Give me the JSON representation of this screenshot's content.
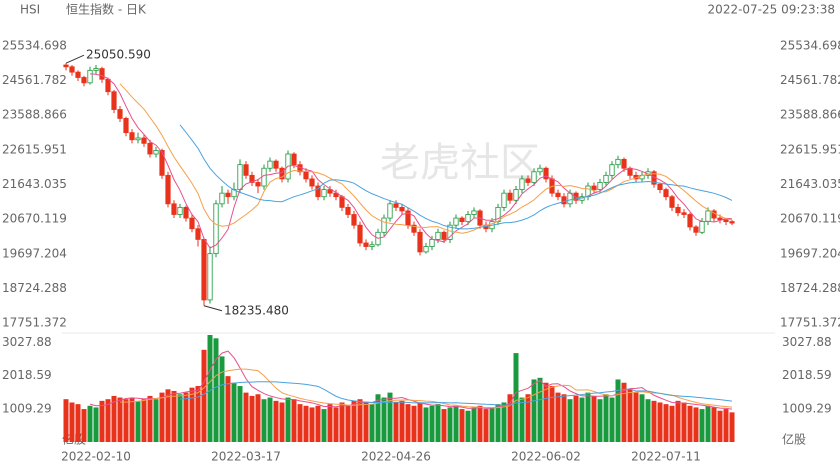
{
  "chart_data": {
    "type": "candlestick",
    "symbol": "HSI",
    "title": "恒生指数 - 日K",
    "timestamp": "2022-07-25 09:23:38",
    "watermark": "老虎社区",
    "up_color": "#1a9a3e",
    "down_color": "#e8321c",
    "ma_colors": [
      "#e8508c",
      "#f5a04a",
      "#4aa3df"
    ],
    "ylim": [
      17611,
      25703
    ],
    "yticks": [
      25534.698,
      24561.782,
      23588.866,
      22615.951,
      21643.035,
      20670.119,
      19697.204,
      18724.288,
      17751.372
    ],
    "annotations": [
      {
        "text": "25050.590",
        "index": 0,
        "value": 25050.59
      },
      {
        "text": "18235.480",
        "index": 23,
        "value": 18235.48
      }
    ],
    "categories": [
      null,
      null,
      null,
      null,
      null,
      "2022-02-10",
      null,
      null,
      null,
      null,
      null,
      null,
      null,
      null,
      null,
      null,
      null,
      null,
      null,
      null,
      null,
      null,
      null,
      null,
      null,
      null,
      null,
      null,
      null,
      null,
      "2022-03-17",
      null,
      null,
      null,
      null,
      null,
      null,
      null,
      null,
      null,
      null,
      null,
      null,
      null,
      null,
      null,
      null,
      null,
      null,
      null,
      null,
      null,
      null,
      null,
      null,
      "2022-04-26",
      null,
      null,
      null,
      null,
      null,
      null,
      null,
      null,
      null,
      null,
      null,
      null,
      null,
      null,
      null,
      null,
      null,
      null,
      null,
      null,
      null,
      null,
      null,
      null,
      "2022-06-02",
      null,
      null,
      null,
      null,
      null,
      null,
      null,
      null,
      null,
      null,
      null,
      null,
      null,
      null,
      null,
      null,
      null,
      null,
      null,
      "2022-07-11",
      null,
      null,
      null,
      null,
      null,
      null,
      null,
      null,
      null,
      null,
      null
    ],
    "ohlc": [
      [
        25000,
        25050.59,
        24850,
        24950
      ],
      [
        24950,
        25000,
        24700,
        24800
      ],
      [
        24800,
        24850,
        24550,
        24650
      ],
      [
        24650,
        24700,
        24400,
        24500
      ],
      [
        24500,
        24950,
        24450,
        24850
      ],
      [
        24850,
        25000,
        24750,
        24900
      ],
      [
        24900,
        24950,
        24500,
        24600
      ],
      [
        24600,
        24650,
        24150,
        24250
      ],
      [
        24250,
        24300,
        23650,
        23750
      ],
      [
        23750,
        23850,
        23400,
        23500
      ],
      [
        23500,
        23550,
        23000,
        23100
      ],
      [
        23100,
        23200,
        22800,
        22900
      ],
      [
        22900,
        23100,
        22800,
        22950
      ],
      [
        22950,
        23050,
        22700,
        22800
      ],
      [
        22800,
        22900,
        22400,
        22500
      ],
      [
        22500,
        22700,
        22400,
        22600
      ],
      [
        22600,
        22650,
        21800,
        21900
      ],
      [
        21900,
        22000,
        21000,
        21100
      ],
      [
        21100,
        21200,
        20700,
        20800
      ],
      [
        20800,
        21100,
        20700,
        21000
      ],
      [
        21000,
        21050,
        20600,
        20700
      ],
      [
        20700,
        20800,
        20300,
        20400
      ],
      [
        20400,
        20500,
        19900,
        20100
      ],
      [
        20100,
        20150,
        18235.48,
        18400
      ],
      [
        18400,
        19900,
        18300,
        19700
      ],
      [
        19700,
        21200,
        19600,
        21100
      ],
      [
        21100,
        21600,
        21000,
        21400
      ],
      [
        21400,
        21500,
        21100,
        21300
      ],
      [
        21300,
        21700,
        21200,
        21500
      ],
      [
        21500,
        22350,
        21400,
        22200
      ],
      [
        22200,
        22300,
        21800,
        21900
      ],
      [
        21900,
        22000,
        21600,
        21700
      ],
      [
        21700,
        21800,
        21400,
        21600
      ],
      [
        21600,
        22200,
        21500,
        22100
      ],
      [
        22100,
        22400,
        22000,
        22300
      ],
      [
        22300,
        22350,
        22000,
        22100
      ],
      [
        22100,
        22150,
        21700,
        21800
      ],
      [
        21800,
        22600,
        21700,
        22500
      ],
      [
        22500,
        22550,
        22100,
        22200
      ],
      [
        22200,
        22300,
        21900,
        22000
      ],
      [
        22000,
        22100,
        21700,
        21800
      ],
      [
        21800,
        21900,
        21500,
        21600
      ],
      [
        21600,
        21700,
        21200,
        21300
      ],
      [
        21300,
        21600,
        21200,
        21500
      ],
      [
        21500,
        21600,
        21300,
        21400
      ],
      [
        21400,
        21500,
        21200,
        21300
      ],
      [
        21300,
        21350,
        20900,
        21000
      ],
      [
        21000,
        21100,
        20700,
        20800
      ],
      [
        20800,
        20900,
        20400,
        20500
      ],
      [
        20500,
        20600,
        19900,
        20000
      ],
      [
        20000,
        20100,
        19800,
        19900
      ],
      [
        19900,
        20050,
        19800,
        19950
      ],
      [
        19950,
        20400,
        19900,
        20300
      ],
      [
        20300,
        20800,
        20200,
        20700
      ],
      [
        20700,
        21200,
        20600,
        21100
      ],
      [
        21100,
        21200,
        20900,
        21000
      ],
      [
        21000,
        21100,
        20800,
        20900
      ],
      [
        20900,
        21000,
        20400,
        20500
      ],
      [
        20500,
        20600,
        20200,
        20300
      ],
      [
        20300,
        20400,
        19650,
        19750
      ],
      [
        19750,
        20000,
        19700,
        19900
      ],
      [
        19900,
        20200,
        19800,
        20100
      ],
      [
        20100,
        20400,
        20000,
        20300
      ],
      [
        20300,
        20350,
        20000,
        20100
      ],
      [
        20100,
        20600,
        20000,
        20500
      ],
      [
        20500,
        20800,
        20400,
        20700
      ],
      [
        20700,
        20750,
        20500,
        20600
      ],
      [
        20600,
        20900,
        20500,
        20800
      ],
      [
        20800,
        21000,
        20700,
        20900
      ],
      [
        20900,
        20950,
        20400,
        20500
      ],
      [
        20500,
        20600,
        20300,
        20400
      ],
      [
        20400,
        20700,
        20300,
        20600
      ],
      [
        20600,
        21100,
        20500,
        21000
      ],
      [
        21000,
        21500,
        20900,
        21400
      ],
      [
        21400,
        21500,
        21100,
        21200
      ],
      [
        21200,
        21600,
        21100,
        21500
      ],
      [
        21500,
        21900,
        21400,
        21800
      ],
      [
        21800,
        21900,
        21600,
        21700
      ],
      [
        21700,
        22100,
        21600,
        22000
      ],
      [
        22000,
        22200,
        21900,
        22100
      ],
      [
        22100,
        22150,
        21700,
        21800
      ],
      [
        21800,
        21900,
        21300,
        21400
      ],
      [
        21400,
        21500,
        21200,
        21300
      ],
      [
        21300,
        21400,
        21000,
        21100
      ],
      [
        21100,
        21500,
        21000,
        21400
      ],
      [
        21400,
        21450,
        21100,
        21200
      ],
      [
        21200,
        21400,
        21100,
        21300
      ],
      [
        21300,
        21700,
        21200,
        21600
      ],
      [
        21600,
        21700,
        21400,
        21500
      ],
      [
        21500,
        21800,
        21400,
        21700
      ],
      [
        21700,
        22000,
        21600,
        21900
      ],
      [
        21900,
        22300,
        21800,
        22200
      ],
      [
        22200,
        22450,
        22100,
        22350
      ],
      [
        22350,
        22400,
        22000,
        22100
      ],
      [
        22100,
        22150,
        21800,
        21900
      ],
      [
        21900,
        22000,
        21700,
        21800
      ],
      [
        21800,
        22000,
        21700,
        21900
      ],
      [
        21900,
        22100,
        21800,
        22000
      ],
      [
        22000,
        22050,
        21550,
        21650
      ],
      [
        21650,
        21700,
        21400,
        21500
      ],
      [
        21500,
        21550,
        21200,
        21300
      ],
      [
        21300,
        21350,
        20900,
        21000
      ],
      [
        21000,
        21100,
        20750,
        20850
      ],
      [
        20850,
        20950,
        20700,
        20800
      ],
      [
        20800,
        20850,
        20350,
        20450
      ],
      [
        20450,
        20500,
        20200,
        20300
      ],
      [
        20300,
        20700,
        20250,
        20600
      ],
      [
        20600,
        21000,
        20500,
        20900
      ],
      [
        20900,
        20950,
        20600,
        20700
      ],
      [
        20700,
        20800,
        20550,
        20650
      ],
      [
        20650,
        20700,
        20500,
        20600
      ],
      [
        20600,
        20650,
        20500,
        20560
      ]
    ],
    "volume": {
      "unit": "亿股",
      "ylim": [
        0,
        3250
      ],
      "yticks": [
        3027.88,
        2018.59,
        1009.29
      ],
      "values": [
        1300,
        1200,
        1150,
        1000,
        1100,
        1050,
        1250,
        1300,
        1400,
        1350,
        1300,
        1350,
        1250,
        1300,
        1400,
        1300,
        1500,
        1600,
        1550,
        1450,
        1500,
        1650,
        1700,
        2800,
        3250,
        3150,
        2600,
        2000,
        1800,
        1700,
        1500,
        1400,
        1450,
        1300,
        1350,
        1250,
        1200,
        1350,
        1300,
        1150,
        1100,
        1050,
        1100,
        1000,
        1150,
        1050,
        1200,
        1100,
        1250,
        1300,
        1200,
        1150,
        1450,
        1350,
        1500,
        1200,
        1250,
        1150,
        1100,
        1200,
        1050,
        1100,
        1150,
        1000,
        1050,
        1100,
        1000,
        950,
        1050,
        1100,
        1000,
        1050,
        1150,
        1200,
        1450,
        2700,
        1350,
        1450,
        1900,
        1950,
        1800,
        1700,
        1500,
        1450,
        1300,
        1400,
        1350,
        1500,
        1400,
        1300,
        1450,
        1350,
        1900,
        1800,
        1600,
        1500,
        1450,
        1300,
        1250,
        1200,
        1150,
        1100,
        1250,
        1200,
        1100,
        1050,
        1000,
        1100,
        1050,
        950,
        1000,
        900
      ]
    }
  }
}
